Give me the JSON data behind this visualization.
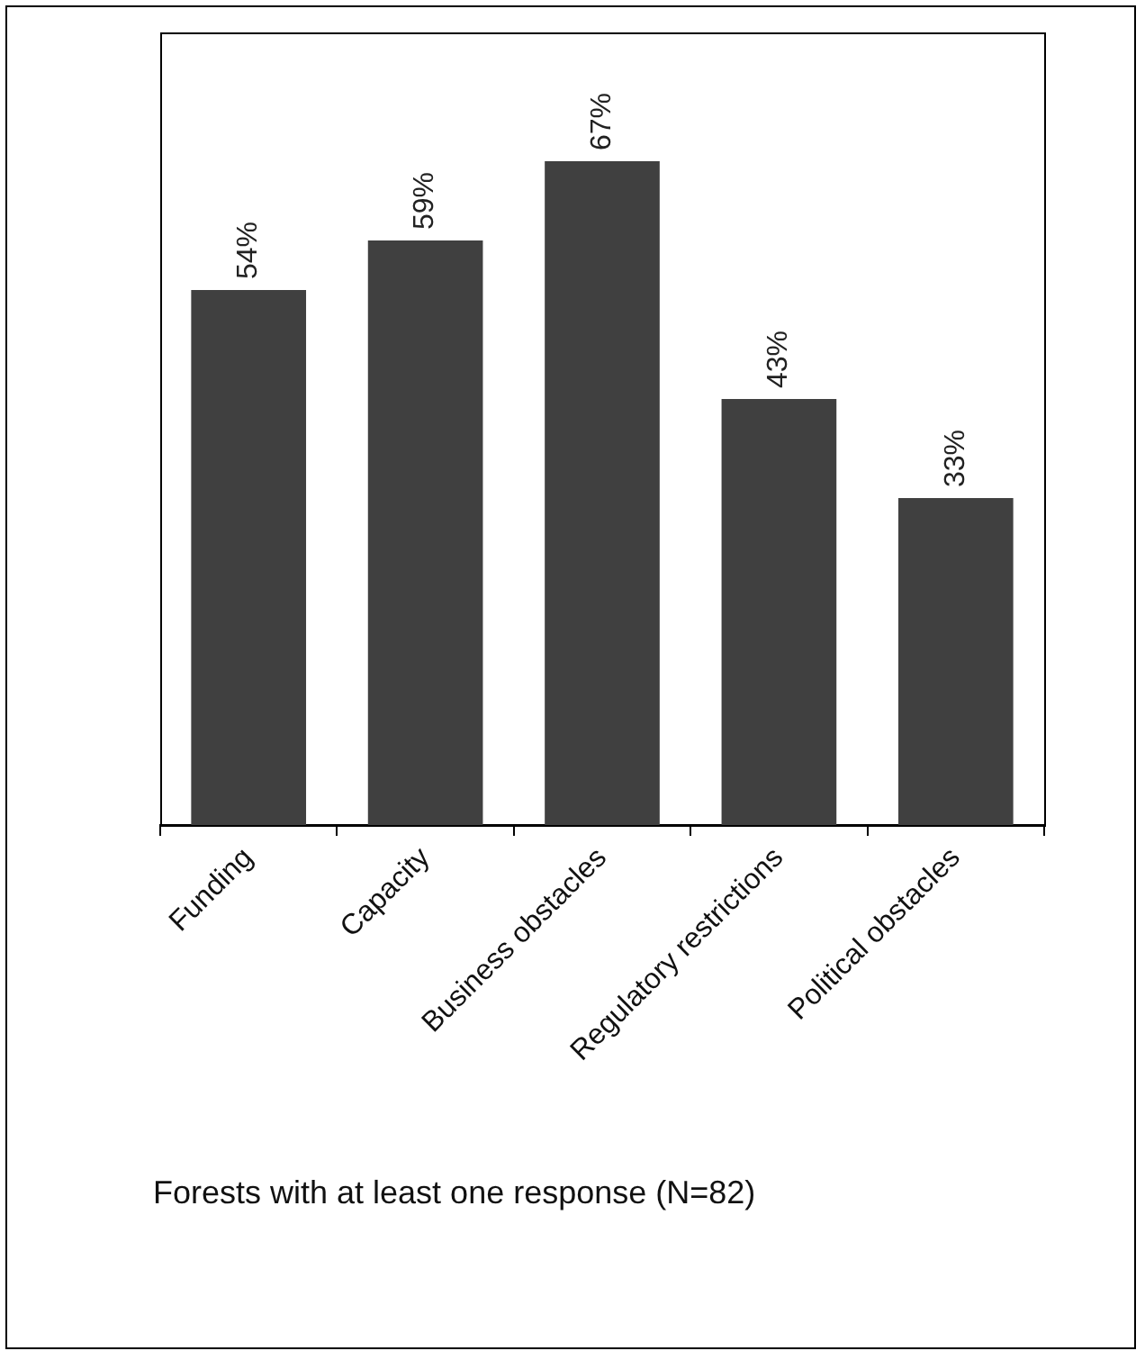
{
  "chart_data": {
    "type": "bar",
    "categories": [
      "Funding",
      "Capacity",
      "Business obstacles",
      "Regulatory restrictions",
      "Political obstacles"
    ],
    "values": [
      54,
      59,
      67,
      43,
      33
    ],
    "color": "#404040",
    "data_labels": true,
    "value_labels": [
      "54%",
      "59%",
      "67%",
      "43%",
      "33%"
    ],
    "grid": false,
    "legend": false,
    "annotations": [
      "Forests with at least one response (N=82)"
    ]
  }
}
